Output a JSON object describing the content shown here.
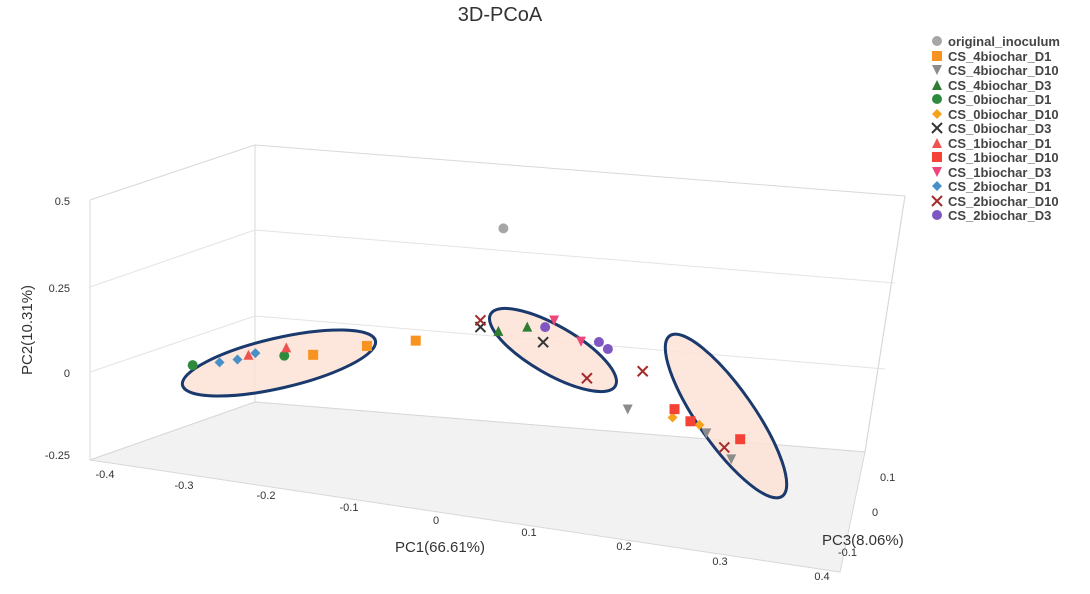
{
  "chart_data": {
    "type": "scatter",
    "title": "3D-PCoA",
    "xlabel": "PC1(66.61%)",
    "ylabel": "PC2(10.31%)",
    "zlabel": "PC3(8.06%)",
    "xlim": [
      -0.4,
      0.4
    ],
    "ylim": [
      -0.25,
      0.5
    ],
    "zlim": [
      -0.1,
      0.1
    ],
    "x_ticks": [
      "-0.4",
      "-0.3",
      "-0.2",
      "-0.1",
      "0",
      "0.1",
      "0.2",
      "0.3",
      "0.4"
    ],
    "y_ticks": [
      "-0.25",
      "0",
      "0.25",
      "0.5"
    ],
    "z_ticks": [
      "-0.1",
      "0",
      "0.1"
    ],
    "legend_position": "top-right",
    "series": [
      {
        "name": "original_inoculum",
        "marker": "circle",
        "color": "#a6a6a6",
        "points": [
          {
            "x": 0.0,
            "y": 0.36,
            "z": 0.1
          }
        ]
      },
      {
        "name": "CS_4biochar_D1",
        "marker": "square",
        "color": "#f7931e",
        "points": [
          {
            "x": -0.19,
            "y": 0.02,
            "z": 0.0
          },
          {
            "x": -0.13,
            "y": 0.05,
            "z": 0.0
          },
          {
            "x": -0.08,
            "y": 0.06,
            "z": 0.02
          }
        ]
      },
      {
        "name": "CS_4biochar_D10",
        "marker": "triangle-down",
        "color": "#8c8c8c",
        "points": [
          {
            "x": 0.17,
            "y": -0.1,
            "z": -0.04
          },
          {
            "x": 0.26,
            "y": -0.16,
            "z": -0.05
          },
          {
            "x": 0.29,
            "y": -0.23,
            "z": -0.06
          }
        ]
      },
      {
        "name": "CS_4biochar_D3",
        "marker": "triangle-up",
        "color": "#2e7d32",
        "points": [
          {
            "x": 0.01,
            "y": 0.09,
            "z": 0.03
          },
          {
            "x": 0.04,
            "y": 0.1,
            "z": 0.04
          }
        ]
      },
      {
        "name": "CS_0biochar_D1",
        "marker": "circle",
        "color": "#2e8b3e",
        "points": [
          {
            "x": -0.32,
            "y": -0.01,
            "z": -0.02
          },
          {
            "x": -0.22,
            "y": 0.02,
            "z": -0.01
          }
        ]
      },
      {
        "name": "CS_0biochar_D10",
        "marker": "diamond",
        "color": "#f7a21b",
        "points": [
          {
            "x": 0.22,
            "y": -0.12,
            "z": -0.04
          },
          {
            "x": 0.25,
            "y": -0.14,
            "z": -0.04
          }
        ]
      },
      {
        "name": "CS_0biochar_D3",
        "marker": "x",
        "color": "#333333",
        "points": [
          {
            "x": -0.01,
            "y": 0.1,
            "z": 0.03
          },
          {
            "x": 0.06,
            "y": 0.06,
            "z": 0.03
          }
        ]
      },
      {
        "name": "CS_1biochar_D1",
        "marker": "triangle-up",
        "color": "#ef5350",
        "points": [
          {
            "x": -0.26,
            "y": 0.02,
            "z": -0.01
          },
          {
            "x": -0.22,
            "y": 0.04,
            "z": 0.0
          }
        ]
      },
      {
        "name": "CS_1biochar_D10",
        "marker": "square",
        "color": "#f44336",
        "points": [
          {
            "x": 0.22,
            "y": -0.1,
            "z": -0.03
          },
          {
            "x": 0.24,
            "y": -0.13,
            "z": -0.04
          },
          {
            "x": 0.3,
            "y": -0.17,
            "z": -0.06
          }
        ]
      },
      {
        "name": "CS_1biochar_D3",
        "marker": "triangle-down",
        "color": "#f0457a",
        "points": [
          {
            "x": 0.07,
            "y": 0.12,
            "z": 0.04
          },
          {
            "x": 0.1,
            "y": 0.06,
            "z": 0.04
          }
        ]
      },
      {
        "name": "CS_2biochar_D1",
        "marker": "diamond",
        "color": "#4a90c8",
        "points": [
          {
            "x": -0.29,
            "y": 0.0,
            "z": -0.02
          },
          {
            "x": -0.27,
            "y": 0.01,
            "z": -0.02
          },
          {
            "x": -0.25,
            "y": 0.03,
            "z": -0.02
          }
        ]
      },
      {
        "name": "CS_2biochar_D10",
        "marker": "x",
        "color": "#a52a2a",
        "points": [
          {
            "x": -0.01,
            "y": 0.12,
            "z": 0.03
          },
          {
            "x": 0.12,
            "y": -0.02,
            "z": -0.02
          },
          {
            "x": 0.18,
            "y": 0.0,
            "z": -0.01
          },
          {
            "x": 0.28,
            "y": -0.2,
            "z": -0.05
          }
        ]
      },
      {
        "name": "CS_2biochar_D3",
        "marker": "circle",
        "color": "#7e57c2",
        "points": [
          {
            "x": 0.06,
            "y": 0.1,
            "z": 0.04
          },
          {
            "x": 0.12,
            "y": 0.06,
            "z": 0.04
          },
          {
            "x": 0.13,
            "y": 0.04,
            "z": 0.04
          }
        ]
      }
    ],
    "annotations": [
      "cluster-left",
      "cluster-middle",
      "cluster-right"
    ]
  }
}
